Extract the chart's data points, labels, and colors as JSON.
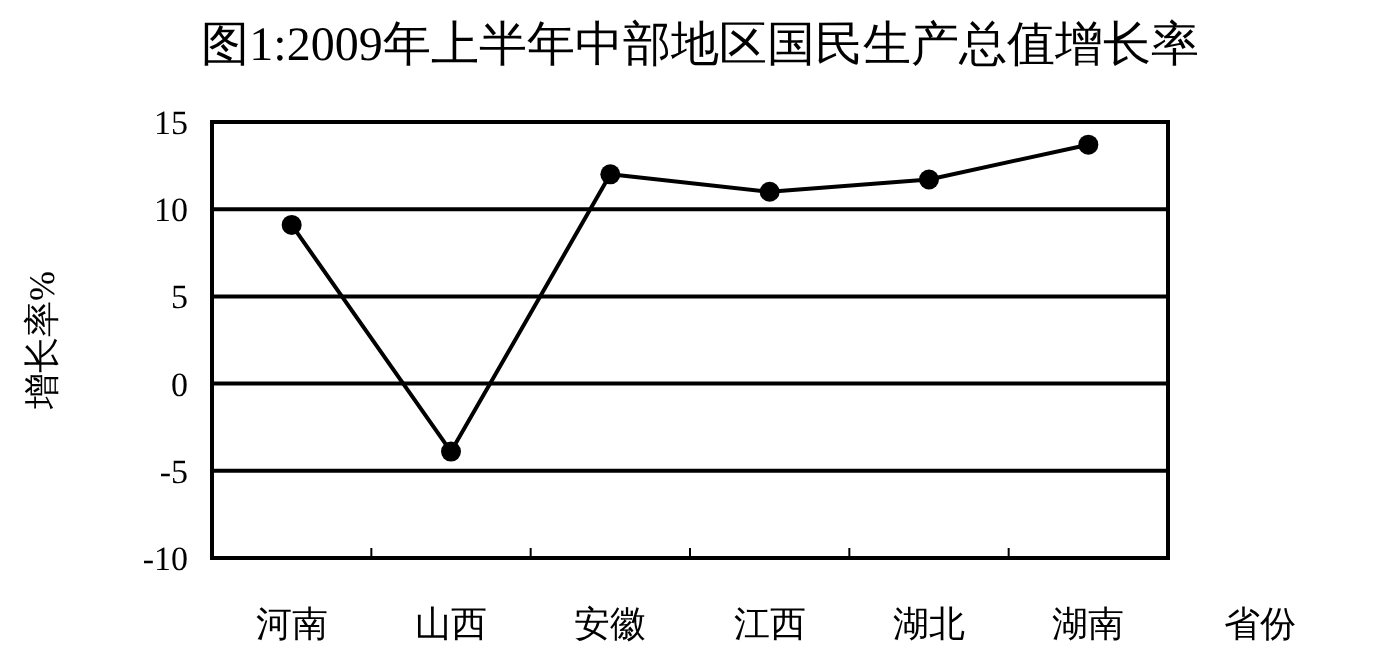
{
  "chart_data": {
    "type": "line",
    "title": "图1:2009年上半年中部地区国民生产总值增长率",
    "categories": [
      "河南",
      "山西",
      "安徽",
      "江西",
      "湖北",
      "湖南"
    ],
    "series": [
      {
        "color": "#000000",
        "values": [
          9.1,
          -3.9,
          12.0,
          11.0,
          11.7,
          13.7
        ]
      }
    ],
    "xlabel": "省份",
    "ylabel": "增长率%",
    "ylim": [
      -10,
      15
    ],
    "yticks": [
      -10,
      -5,
      0,
      5,
      10,
      15
    ],
    "grid": "y",
    "marker": "circle",
    "line_style": "solid"
  }
}
